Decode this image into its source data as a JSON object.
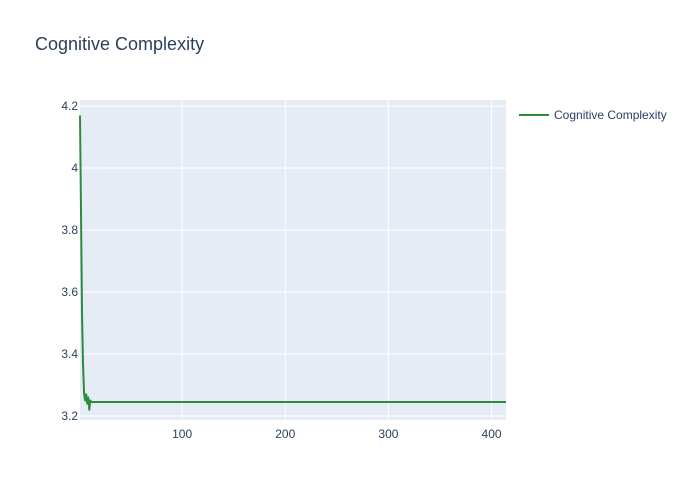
{
  "chart_data": {
    "type": "line",
    "title": "Cognitive Complexity",
    "xlabel": "",
    "ylabel": "",
    "xlim": [
      1,
      414
    ],
    "ylim": [
      3.187,
      4.22
    ],
    "xticks": [
      100,
      200,
      300,
      400
    ],
    "xtick_labels": [
      "100",
      "200",
      "300",
      "400"
    ],
    "yticks": [
      3.2,
      3.4,
      3.6,
      3.8,
      4.0,
      4.2
    ],
    "ytick_labels": [
      "3.2",
      "3.4",
      "3.6",
      "3.8",
      "4",
      "4.2"
    ],
    "grid": true,
    "legend_position": "top-right",
    "colors": {
      "series": "#2e8b3e",
      "plot_bg": "#e5ecf6",
      "grid": "#ffffff",
      "text": "#2a3f5f"
    },
    "series": [
      {
        "name": "Cognitive Complexity",
        "x": [
          1,
          2,
          3,
          4,
          5,
          6,
          7,
          8,
          9,
          10,
          11,
          12,
          13,
          14,
          15,
          20,
          50,
          100,
          200,
          300,
          400,
          414
        ],
        "y": [
          4.17,
          3.85,
          3.52,
          3.36,
          3.27,
          3.25,
          3.27,
          3.24,
          3.26,
          3.22,
          3.25,
          3.245,
          3.245,
          3.245,
          3.245,
          3.245,
          3.245,
          3.245,
          3.245,
          3.245,
          3.245,
          3.245
        ]
      }
    ]
  }
}
